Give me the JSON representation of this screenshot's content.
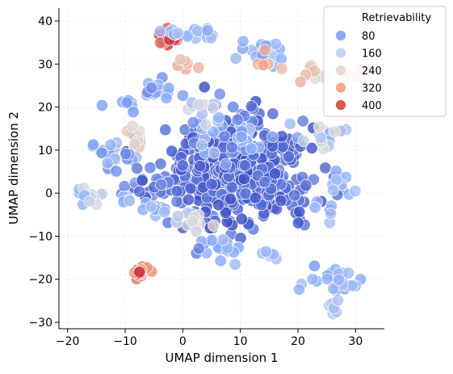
{
  "chart_data": {
    "type": "scatter",
    "title": "",
    "xlabel": "UMAP dimension 1",
    "ylabel": "UMAP dimension 2",
    "xlim": [
      -21.5,
      35
    ],
    "ylim": [
      -31.5,
      43
    ],
    "xticks": [
      -20,
      -10,
      0,
      10,
      20,
      30
    ],
    "yticks": [
      -30,
      -20,
      -10,
      0,
      10,
      20,
      30,
      40
    ],
    "grid": true,
    "legend": {
      "title": "Retrievability",
      "position": "top-right",
      "entries": [
        {
          "label": "80",
          "value": 80,
          "color": "#8aaaf3"
        },
        {
          "label": "160",
          "value": 160,
          "color": "#c3d5f4"
        },
        {
          "label": "240",
          "value": 240,
          "color": "#ead7cf"
        },
        {
          "label": "320",
          "value": 320,
          "color": "#f4a98a"
        },
        {
          "label": "400",
          "value": 400,
          "color": "#d8594d"
        }
      ]
    },
    "colormap": "coolwarm",
    "color_range": [
      0,
      480
    ],
    "clusters": [
      {
        "cx": 10,
        "cy": 5,
        "sx": 8.5,
        "sy": 7.5,
        "n": 430,
        "r_lo": 0,
        "r_hi": 60
      },
      {
        "cx": 8,
        "cy": 14,
        "sx": 5,
        "sy": 4,
        "n": 40,
        "r_lo": 60,
        "r_hi": 170
      },
      {
        "cx": -3,
        "cy": 36,
        "sx": 1.8,
        "sy": 1.5,
        "n": 14,
        "r_lo": 380,
        "r_hi": 460
      },
      {
        "cx": 1,
        "cy": 37,
        "sx": 3,
        "sy": 1.2,
        "n": 18,
        "r_lo": 110,
        "r_hi": 180
      },
      {
        "cx": 1,
        "cy": 30,
        "sx": 1.2,
        "sy": 1,
        "n": 6,
        "r_lo": 280,
        "r_hi": 330
      },
      {
        "cx": 14,
        "cy": 33,
        "sx": 2.5,
        "sy": 2,
        "n": 18,
        "r_lo": 90,
        "r_hi": 170
      },
      {
        "cx": 15,
        "cy": 30,
        "sx": 1.5,
        "sy": 1.5,
        "n": 6,
        "r_lo": 290,
        "r_hi": 340
      },
      {
        "cx": 24,
        "cy": 27,
        "sx": 3,
        "sy": 1.5,
        "n": 12,
        "r_lo": 240,
        "r_hi": 330
      },
      {
        "cx": -10,
        "cy": 21,
        "sx": 2,
        "sy": 1.2,
        "n": 12,
        "r_lo": 80,
        "r_hi": 160
      },
      {
        "cx": -4,
        "cy": 24,
        "sx": 2.5,
        "sy": 2,
        "n": 14,
        "r_lo": 70,
        "r_hi": 150
      },
      {
        "cx": 3,
        "cy": 20,
        "sx": 2,
        "sy": 2,
        "n": 10,
        "r_lo": 150,
        "r_hi": 230
      },
      {
        "cx": -8,
        "cy": 13,
        "sx": 1.5,
        "sy": 2,
        "n": 10,
        "r_lo": 240,
        "r_hi": 320
      },
      {
        "cx": -12,
        "cy": 9,
        "sx": 3,
        "sy": 2.5,
        "n": 22,
        "r_lo": 70,
        "r_hi": 170
      },
      {
        "cx": -6,
        "cy": 2,
        "sx": 2.5,
        "sy": 2.5,
        "n": 18,
        "r_lo": 10,
        "r_hi": 100
      },
      {
        "cx": -17,
        "cy": -1,
        "sx": 2,
        "sy": 1.5,
        "n": 14,
        "r_lo": 120,
        "r_hi": 230
      },
      {
        "cx": -10,
        "cy": -1,
        "sx": 1.2,
        "sy": 1,
        "n": 6,
        "r_lo": 110,
        "r_hi": 170
      },
      {
        "cx": 1,
        "cy": -6,
        "sx": 2.5,
        "sy": 1.5,
        "n": 14,
        "r_lo": 170,
        "r_hi": 260
      },
      {
        "cx": -5,
        "cy": -4,
        "sx": 2,
        "sy": 1.5,
        "n": 10,
        "r_lo": 90,
        "r_hi": 170
      },
      {
        "cx": 7,
        "cy": -13,
        "sx": 3,
        "sy": 1.8,
        "n": 20,
        "r_lo": 40,
        "r_hi": 150
      },
      {
        "cx": 15,
        "cy": -15,
        "sx": 1.5,
        "sy": 1.2,
        "n": 6,
        "r_lo": 110,
        "r_hi": 170
      },
      {
        "cx": -7,
        "cy": -18,
        "sx": 1.2,
        "sy": 1.5,
        "n": 14,
        "r_lo": 330,
        "r_hi": 460
      },
      {
        "cx": 26,
        "cy": -20,
        "sx": 3.5,
        "sy": 2.5,
        "n": 24,
        "r_lo": 90,
        "r_hi": 170
      },
      {
        "cx": 26,
        "cy": -26,
        "sx": 1.2,
        "sy": 1.2,
        "n": 8,
        "r_lo": 150,
        "r_hi": 240
      },
      {
        "cx": 25,
        "cy": 13,
        "sx": 3,
        "sy": 3,
        "n": 14,
        "r_lo": 110,
        "r_hi": 260
      },
      {
        "cx": 27,
        "cy": 3,
        "sx": 2.5,
        "sy": 2.5,
        "n": 10,
        "r_lo": 110,
        "r_hi": 170
      },
      {
        "cx": 24,
        "cy": -4,
        "sx": 2,
        "sy": 1.5,
        "n": 6,
        "r_lo": 120,
        "r_hi": 180
      }
    ]
  }
}
